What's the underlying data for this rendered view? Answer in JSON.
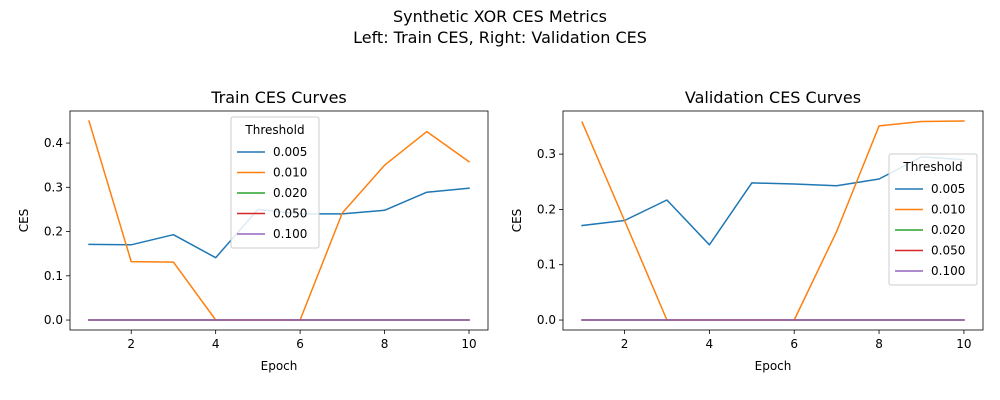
{
  "figure": {
    "suptitle": [
      "Synthetic XOR CES Metrics",
      "Left: Train CES, Right: Validation CES"
    ]
  },
  "colors": {
    "0.005": "#1f77b4",
    "0.010": "#ff7f0e",
    "0.020": "#2ca02c",
    "0.050": "#d62728",
    "0.100": "#9467bd"
  },
  "chart_data": [
    {
      "type": "line",
      "title": "Train CES Curves",
      "xlabel": "Epoch",
      "ylabel": "CES",
      "xlim": [
        0.55,
        10.45
      ],
      "ylim": [
        -0.0225,
        0.4725
      ],
      "xticks": [
        2,
        4,
        6,
        8,
        10
      ],
      "yticks": [
        0.0,
        0.1,
        0.2,
        0.3,
        0.4
      ],
      "ytick_labels": [
        "0.0",
        "0.1",
        "0.2",
        "0.3",
        "0.4"
      ],
      "grid": false,
      "legend": {
        "title": "Threshold",
        "placement": "upper-center"
      },
      "x": [
        1,
        2,
        3,
        4,
        5,
        6,
        7,
        8,
        9,
        10
      ],
      "series": [
        {
          "name": "0.005",
          "values": [
            0.171,
            0.17,
            0.193,
            0.141,
            0.25,
            0.24,
            0.24,
            0.248,
            0.289,
            0.298
          ]
        },
        {
          "name": "0.010",
          "values": [
            0.45,
            0.132,
            0.131,
            0.0,
            0.0,
            0.0,
            0.242,
            0.35,
            0.426,
            0.358
          ]
        },
        {
          "name": "0.020",
          "values": [
            0.0,
            0.0,
            0.0,
            0.0,
            0.0,
            0.0,
            0.0,
            0.0,
            0.0,
            0.0
          ]
        },
        {
          "name": "0.050",
          "values": [
            0.0,
            0.0,
            0.0,
            0.0,
            0.0,
            0.0,
            0.0,
            0.0,
            0.0,
            0.0
          ]
        },
        {
          "name": "0.100",
          "values": [
            0.0,
            0.0,
            0.0,
            0.0,
            0.0,
            0.0,
            0.0,
            0.0,
            0.0,
            0.0
          ]
        }
      ]
    },
    {
      "type": "line",
      "title": "Validation CES Curves",
      "xlabel": "Epoch",
      "ylabel": "CES",
      "xlim": [
        0.55,
        10.45
      ],
      "ylim": [
        -0.018,
        0.378
      ],
      "xticks": [
        2,
        4,
        6,
        8,
        10
      ],
      "yticks": [
        0.0,
        0.1,
        0.2,
        0.3
      ],
      "ytick_labels": [
        "0.0",
        "0.1",
        "0.2",
        "0.3"
      ],
      "grid": false,
      "legend": {
        "title": "Threshold",
        "placement": "center-right"
      },
      "x": [
        1,
        2,
        3,
        4,
        5,
        6,
        7,
        8,
        9,
        10
      ],
      "series": [
        {
          "name": "0.005",
          "values": [
            0.171,
            0.18,
            0.217,
            0.136,
            0.248,
            0.246,
            0.243,
            0.255,
            0.295,
            0.29
          ]
        },
        {
          "name": "0.010",
          "values": [
            0.358,
            0.18,
            0.0,
            0.0,
            0.0,
            0.0,
            0.16,
            0.351,
            0.359,
            0.36
          ]
        },
        {
          "name": "0.020",
          "values": [
            0.0,
            0.0,
            0.0,
            0.0,
            0.0,
            0.0,
            0.0,
            0.0,
            0.0,
            0.0
          ]
        },
        {
          "name": "0.050",
          "values": [
            0.0,
            0.0,
            0.0,
            0.0,
            0.0,
            0.0,
            0.0,
            0.0,
            0.0,
            0.0
          ]
        },
        {
          "name": "0.100",
          "values": [
            0.0,
            0.0,
            0.0,
            0.0,
            0.0,
            0.0,
            0.0,
            0.0,
            0.0,
            0.0
          ]
        }
      ]
    }
  ]
}
